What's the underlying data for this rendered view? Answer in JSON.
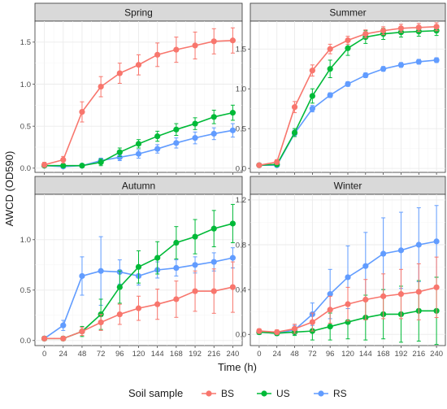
{
  "chart_data": {
    "type": "line",
    "xlabel": "Time (h)",
    "ylabel": "AWCD (OD590)",
    "x": [
      0,
      24,
      48,
      72,
      96,
      120,
      144,
      168,
      192,
      216,
      240
    ],
    "legend": {
      "title": "Soil sample",
      "position": "bottom",
      "entries": [
        "BS",
        "US",
        "RS"
      ]
    },
    "colors": {
      "BS": "#F8766D",
      "US": "#00BA38",
      "RS": "#619CFF"
    },
    "grid": true,
    "panels": [
      {
        "title": "Spring",
        "ylim": [
          -0.05,
          1.75
        ],
        "yticks": [
          0.0,
          0.5,
          1.0,
          1.5
        ],
        "ytick_labels": [
          "0.0",
          "0.5",
          "1.0",
          "1.5"
        ],
        "series": [
          {
            "name": "BS",
            "values": [
              0.04,
              0.1,
              0.67,
              0.97,
              1.13,
              1.23,
              1.35,
              1.41,
              1.46,
              1.51,
              1.52
            ],
            "errors": [
              0.03,
              0.04,
              0.12,
              0.12,
              0.12,
              0.12,
              0.14,
              0.15,
              0.16,
              0.15,
              0.15
            ]
          },
          {
            "name": "US",
            "values": [
              0.03,
              0.03,
              0.03,
              0.07,
              0.19,
              0.29,
              0.38,
              0.46,
              0.53,
              0.61,
              0.66
            ],
            "errors": [
              0.02,
              0.02,
              0.02,
              0.04,
              0.05,
              0.05,
              0.06,
              0.07,
              0.07,
              0.08,
              0.09
            ]
          },
          {
            "name": "RS",
            "values": [
              0.03,
              0.02,
              0.03,
              0.09,
              0.13,
              0.17,
              0.23,
              0.3,
              0.36,
              0.41,
              0.45
            ],
            "errors": [
              0.02,
              0.02,
              0.02,
              0.03,
              0.04,
              0.05,
              0.05,
              0.06,
              0.07,
              0.07,
              0.08
            ]
          }
        ]
      },
      {
        "title": "Summer",
        "ylim": [
          -0.05,
          1.85
        ],
        "yticks": [
          0.0,
          0.5,
          1.0,
          1.5
        ],
        "ytick_labels": [
          "0.0",
          "0.5",
          "1.0",
          "1.5"
        ],
        "series": [
          {
            "name": "BS",
            "values": [
              0.04,
              0.08,
              0.77,
              1.23,
              1.5,
              1.61,
              1.69,
              1.73,
              1.76,
              1.77,
              1.78
            ],
            "errors": [
              0.02,
              0.03,
              0.07,
              0.07,
              0.06,
              0.05,
              0.05,
              0.05,
              0.05,
              0.05,
              0.05
            ]
          },
          {
            "name": "US",
            "values": [
              0.04,
              0.05,
              0.45,
              0.91,
              1.25,
              1.51,
              1.65,
              1.69,
              1.71,
              1.72,
              1.73
            ],
            "errors": [
              0.02,
              0.02,
              0.05,
              0.09,
              0.11,
              0.09,
              0.08,
              0.07,
              0.06,
              0.06,
              0.06
            ]
          },
          {
            "name": "RS",
            "values": [
              0.04,
              0.04,
              0.44,
              0.75,
              0.92,
              1.06,
              1.17,
              1.25,
              1.3,
              1.34,
              1.36
            ],
            "errors": [
              0.02,
              0.02,
              0.04,
              0.04,
              0.03,
              0.03,
              0.03,
              0.03,
              0.03,
              0.03,
              0.03
            ]
          }
        ]
      },
      {
        "title": "Autumn",
        "ylim": [
          -0.05,
          1.45
        ],
        "yticks": [
          0.0,
          0.5,
          1.0
        ],
        "ytick_labels": [
          "0.0",
          "0.5",
          "1.0"
        ],
        "series": [
          {
            "name": "BS",
            "values": [
              0.02,
              0.02,
              0.09,
              0.18,
              0.26,
              0.32,
              0.36,
              0.41,
              0.49,
              0.49,
              0.53
            ],
            "errors": [
              0.02,
              0.02,
              0.04,
              0.08,
              0.1,
              0.12,
              0.15,
              0.18,
              0.2,
              0.22,
              0.25
            ]
          },
          {
            "name": "US",
            "values": [
              0.02,
              0.02,
              0.09,
              0.26,
              0.53,
              0.73,
              0.82,
              0.97,
              1.03,
              1.11,
              1.16
            ],
            "errors": [
              0.02,
              0.02,
              0.05,
              0.15,
              0.16,
              0.16,
              0.16,
              0.16,
              0.17,
              0.18,
              0.19
            ]
          },
          {
            "name": "RS",
            "values": [
              0.02,
              0.15,
              0.64,
              0.69,
              0.68,
              0.64,
              0.7,
              0.72,
              0.75,
              0.78,
              0.82
            ],
            "errors": [
              0.02,
              0.05,
              0.19,
              0.34,
              0.12,
              0.09,
              0.08,
              0.08,
              0.08,
              0.09,
              0.1
            ]
          }
        ]
      },
      {
        "title": "Winter",
        "ylim": [
          -0.1,
          1.25
        ],
        "yticks": [
          0.0,
          0.4,
          0.8,
          1.2
        ],
        "ytick_labels": [
          "0.0",
          "0.4",
          "0.8",
          "1.2"
        ],
        "series": [
          {
            "name": "BS",
            "values": [
              0.03,
              0.02,
              0.05,
              0.11,
              0.22,
              0.27,
              0.31,
              0.34,
              0.36,
              0.38,
              0.42
            ],
            "errors": [
              0.02,
              0.02,
              0.04,
              0.08,
              0.12,
              0.15,
              0.18,
              0.2,
              0.22,
              0.25,
              0.27
            ]
          },
          {
            "name": "US",
            "values": [
              0.02,
              0.01,
              0.02,
              0.03,
              0.07,
              0.11,
              0.15,
              0.18,
              0.18,
              0.21,
              0.21
            ],
            "errors": [
              0.02,
              0.02,
              0.03,
              0.08,
              0.12,
              0.15,
              0.2,
              0.22,
              0.25,
              0.27,
              0.3
            ]
          },
          {
            "name": "RS",
            "values": [
              0.02,
              0.01,
              0.04,
              0.18,
              0.36,
              0.51,
              0.61,
              0.72,
              0.75,
              0.8,
              0.83
            ],
            "errors": [
              0.02,
              0.02,
              0.04,
              0.1,
              0.22,
              0.28,
              0.3,
              0.32,
              0.34,
              0.33,
              0.32
            ]
          }
        ]
      }
    ]
  }
}
